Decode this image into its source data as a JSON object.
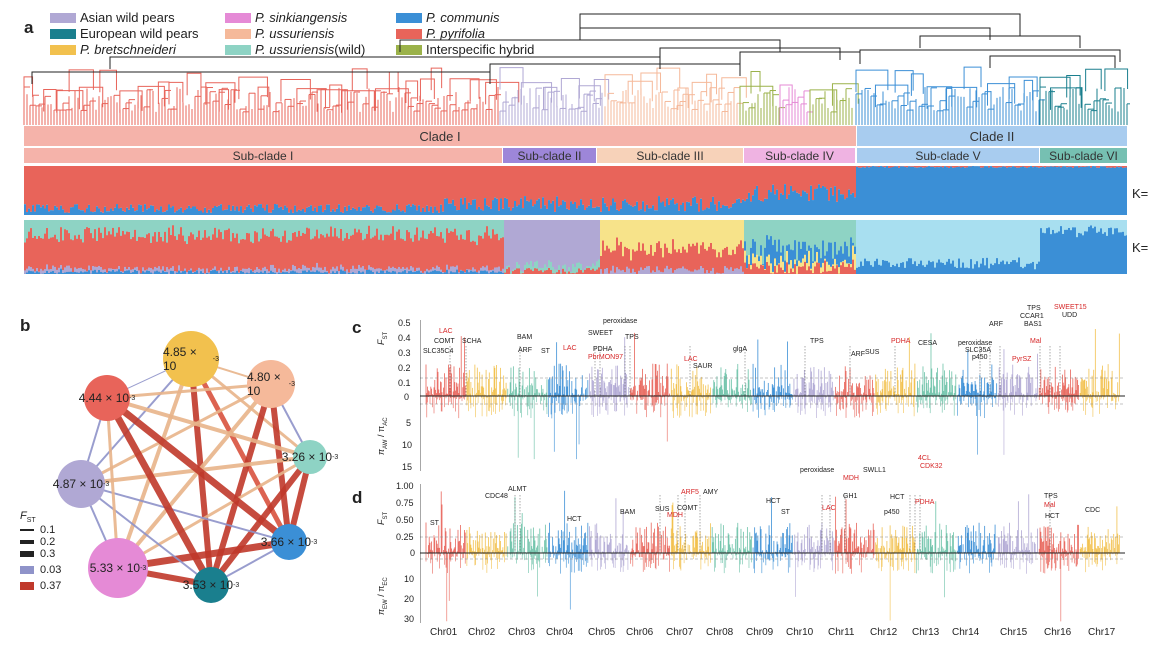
{
  "panel_a": {
    "letter": "a",
    "legend": [
      {
        "name": "Asian wild pears",
        "italic": false,
        "color": "#b0a8d4"
      },
      {
        "name": "European wild pears",
        "italic": false,
        "color": "#1a7f8e"
      },
      {
        "name": "P. bretschneideri",
        "italic": true,
        "color": "#f2c14e"
      },
      {
        "name": "P. sinkiangensis",
        "italic": true,
        "color": "#e58ad6"
      },
      {
        "name": "P. ussuriensis",
        "italic": true,
        "color": "#f5b99a"
      },
      {
        "name": "P. ussuriensis",
        "suffix": " (wild)",
        "italic": true,
        "color": "#8ed3c4"
      },
      {
        "name": "P. communis",
        "italic": true,
        "color": "#3b8fd6"
      },
      {
        "name": "P. pyrifolia",
        "italic": true,
        "color": "#e8645a"
      },
      {
        "name": "Interspecific hybrid",
        "italic": false,
        "color": "#9bb24a"
      }
    ],
    "clades": [
      {
        "label": "Clade I",
        "color": "#f5b3aa"
      },
      {
        "label": "Clade II",
        "color": "#a8ccef"
      }
    ],
    "subclades": [
      {
        "label": "Sub-clade I",
        "color": "#f5b3aa"
      },
      {
        "label": "Sub-clade II",
        "color": "#9d86d9"
      },
      {
        "label": "Sub-clade III",
        "color": "#f7d2b9"
      },
      {
        "label": "Sub-clade IV",
        "color": "#efb3e2"
      },
      {
        "label": "Sub-clade V",
        "color": "#a8ccef"
      },
      {
        "label": "Sub-clade VI",
        "color": "#76c0b2"
      }
    ],
    "k_labels": [
      "K=",
      "K="
    ]
  },
  "panel_b": {
    "letter": "b",
    "nodes": [
      {
        "label": "4.85 × 10",
        "exp": "-3",
        "color": "#f2c14e"
      },
      {
        "label": "4.80 × 10",
        "exp": "-3",
        "color": "#f5b99a"
      },
      {
        "label": "3.26 × 10",
        "exp": "-3",
        "color": "#8ed3c4"
      },
      {
        "label": "3.66 × 10",
        "exp": "-3",
        "color": "#3b8fd6"
      },
      {
        "label": "3.53 × 10",
        "exp": "-3",
        "color": "#1a7f8e"
      },
      {
        "label": "5.33 × 10",
        "exp": "-3",
        "color": "#e58ad6"
      },
      {
        "label": "4.87 × 10",
        "exp": "-3",
        "color": "#b0a8d4"
      },
      {
        "label": "4.44 × 10",
        "exp": "-3",
        "color": "#e8645a"
      }
    ],
    "legend_title": "F",
    "legend_title_sub": "ST",
    "width_legend": [
      "0.1",
      "0.2",
      "0.3"
    ],
    "color_legend": [
      {
        "label": "0.03",
        "color": "#8f93c9"
      },
      {
        "label": "0.37",
        "color": "#c0392b"
      }
    ]
  },
  "panel_c": {
    "letter": "c",
    "fst_axis": {
      "label": "F",
      "sub": "ST",
      "ticks": [
        "0.5",
        "0.4",
        "0.3",
        "0.2",
        "0.1",
        "0"
      ]
    },
    "pi_axis": {
      "label": "π",
      "sub1": "AW",
      "mid": " / π",
      "sub2": "AC",
      "ticks": [
        "5",
        "10",
        "15"
      ]
    },
    "genes": [
      {
        "t": "LAC",
        "red": true
      },
      {
        "t": "COMT",
        "red": false
      },
      {
        "t": "SLC35C4",
        "red": false
      },
      {
        "t": "SCHA",
        "red": false
      },
      {
        "t": "BAM",
        "red": false
      },
      {
        "t": "ARF",
        "red": false
      },
      {
        "t": "ST",
        "red": false
      },
      {
        "t": "LAC",
        "red": true
      },
      {
        "t": "SWEET",
        "red": false
      },
      {
        "t": "PDHA",
        "red": false
      },
      {
        "t": "PbrMON97",
        "red": true
      },
      {
        "t": "peroxidase",
        "red": false
      },
      {
        "t": "TPS",
        "red": false
      },
      {
        "t": "LAC",
        "red": true
      },
      {
        "t": "SAUR",
        "red": false
      },
      {
        "t": "glgA",
        "red": false
      },
      {
        "t": "TPS",
        "red": false
      },
      {
        "t": "ARF",
        "red": false
      },
      {
        "t": "SUS",
        "red": false
      },
      {
        "t": "PDHA",
        "red": true
      },
      {
        "t": "CESA",
        "red": false
      },
      {
        "t": "ARF",
        "red": false
      },
      {
        "t": "peroxidase",
        "red": false
      },
      {
        "t": "SLC35A",
        "red": false
      },
      {
        "t": "p450",
        "red": false
      },
      {
        "t": "TPS",
        "red": false
      },
      {
        "t": "CCAR1",
        "red": false
      },
      {
        "t": "BAS1",
        "red": false
      },
      {
        "t": "Mal",
        "red": true
      },
      {
        "t": "PyrSZ",
        "red": true
      },
      {
        "t": "SWEET15",
        "red": true
      },
      {
        "t": "UDD",
        "red": false
      }
    ]
  },
  "panel_d": {
    "letter": "d",
    "fst_axis": {
      "label": "F",
      "sub": "ST",
      "ticks": [
        "1.00",
        "0.75",
        "0.50",
        "0.25",
        "0"
      ]
    },
    "pi_axis": {
      "label": "π",
      "sub1": "EW",
      "mid": " / π",
      "sub2": "EC",
      "ticks": [
        "10",
        "20",
        "30"
      ]
    },
    "genes": [
      {
        "t": "ST",
        "red": false
      },
      {
        "t": "CDC48",
        "red": false
      },
      {
        "t": "ALMT",
        "red": false
      },
      {
        "t": "HCT",
        "red": false
      },
      {
        "t": "BAM",
        "red": false
      },
      {
        "t": "SUS",
        "red": false
      },
      {
        "t": "ARF5",
        "red": true
      },
      {
        "t": "MDH",
        "red": true
      },
      {
        "t": "COMT",
        "red": false
      },
      {
        "t": "AMY",
        "red": false
      },
      {
        "t": "HCT",
        "red": false
      },
      {
        "t": "ST",
        "red": false
      },
      {
        "t": "peroxidase",
        "red": false
      },
      {
        "t": "MDH",
        "red": true
      },
      {
        "t": "GH1",
        "red": false
      },
      {
        "t": "LAC",
        "red": true
      },
      {
        "t": "SWLL1",
        "red": false
      },
      {
        "t": "HCT",
        "red": false
      },
      {
        "t": "p450",
        "red": false
      },
      {
        "t": "4CL",
        "red": true
      },
      {
        "t": "CDK32",
        "red": true
      },
      {
        "t": "PDHA",
        "red": true
      },
      {
        "t": "TPS",
        "red": false
      },
      {
        "t": "Mal",
        "red": true
      },
      {
        "t": "HCT",
        "red": false
      },
      {
        "t": "CDC",
        "red": false
      }
    ]
  },
  "chromosomes": [
    "Chr01",
    "Chr02",
    "Chr03",
    "Chr04",
    "Chr05",
    "Chr06",
    "Chr07",
    "Chr08",
    "Chr09",
    "Chr10",
    "Chr11",
    "Chr12",
    "Chr13",
    "Chr14",
    "Chr15",
    "Chr16",
    "Chr17"
  ],
  "chr_colors": [
    "#e8645a",
    "#f2c14e",
    "#6cc2a8",
    "#3b8fd6",
    "#b0a8d4",
    "#e8645a",
    "#f2c14e",
    "#6cc2a8",
    "#3b8fd6",
    "#b0a8d4",
    "#e8645a",
    "#f2c14e",
    "#6cc2a8",
    "#3b8fd6",
    "#b0a8d4",
    "#e8645a",
    "#f2c14e"
  ]
}
